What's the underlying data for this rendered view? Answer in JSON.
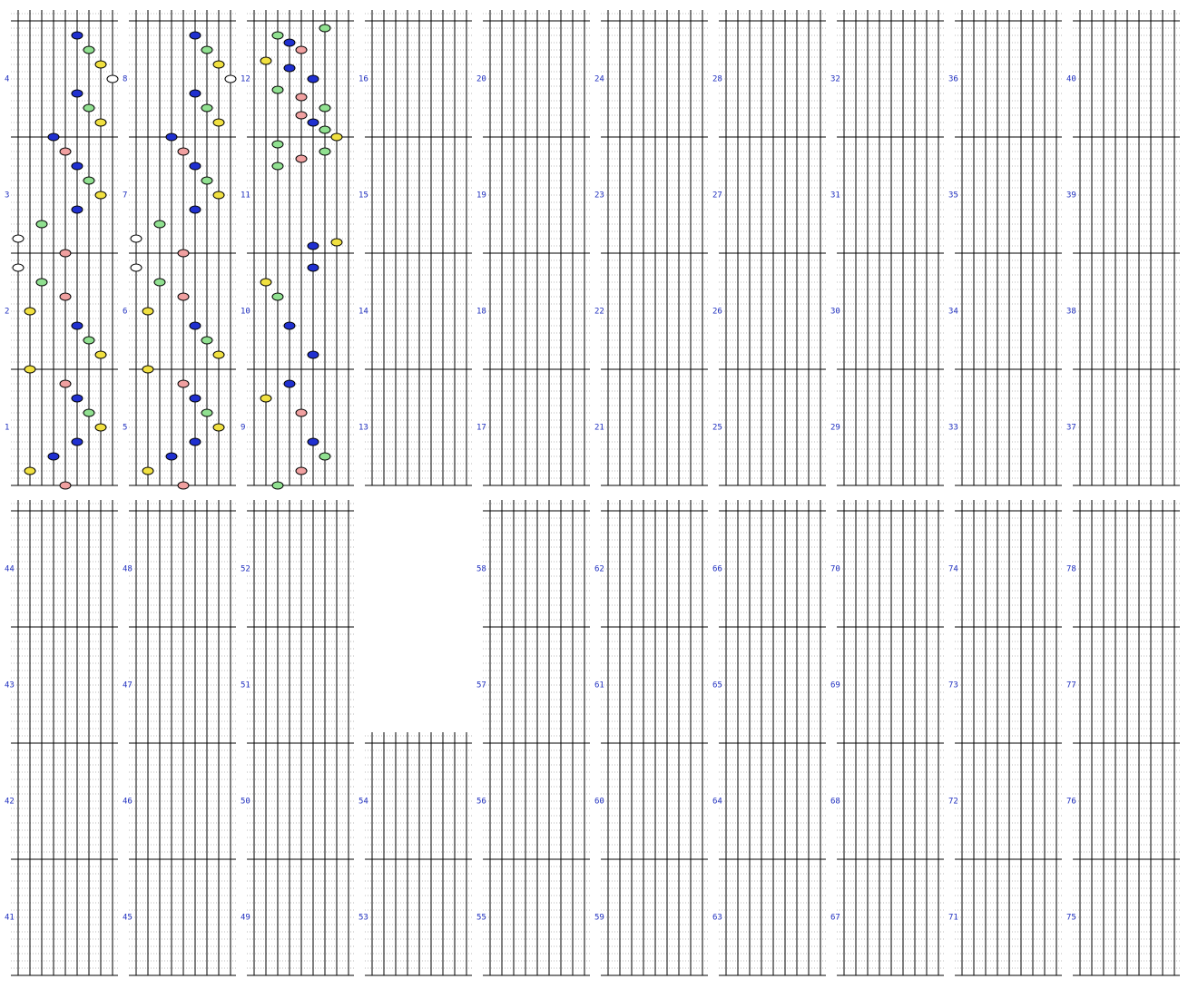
{
  "measures": [
    1,
    2,
    3,
    4,
    5,
    6,
    7,
    8,
    9,
    10,
    11,
    12,
    13,
    14,
    15,
    16,
    17,
    18,
    19,
    20,
    21,
    22,
    23,
    24,
    25,
    26,
    27,
    28,
    29,
    30,
    31,
    32,
    33,
    34,
    35,
    36,
    37,
    38,
    39,
    40,
    41,
    42,
    43,
    44,
    45,
    46,
    47,
    48,
    49,
    50,
    51,
    52,
    53,
    54,
    55,
    56,
    57,
    58,
    59,
    60,
    61,
    62,
    63,
    64,
    65,
    66,
    67,
    68,
    69,
    70,
    71,
    72,
    73,
    74,
    75,
    76,
    77,
    78
  ],
  "lane_colors": [
    "#ffffff",
    "#f0e040",
    "#90e090",
    "#2030d0",
    "#f0a0a0",
    "#2030d0",
    "#90e090",
    "#f0e040",
    "#ffffff"
  ],
  "notes": [
    [
      [
        5,
        62
      ],
      [
        6,
        60
      ],
      [
        7,
        58
      ],
      [
        8,
        56
      ],
      [
        5,
        54
      ],
      [
        6,
        52
      ],
      [
        7,
        50
      ],
      [
        3,
        48
      ],
      [
        4,
        46
      ],
      [
        5,
        44
      ],
      [
        6,
        42
      ],
      [
        7,
        40
      ],
      [
        5,
        38
      ],
      [
        2,
        36
      ],
      [
        0,
        34
      ],
      [
        4,
        32
      ],
      [
        0,
        30
      ],
      [
        2,
        28
      ],
      [
        4,
        26
      ],
      [
        1,
        24
      ],
      [
        5,
        22
      ],
      [
        6,
        20
      ],
      [
        7,
        18
      ],
      [
        1,
        16
      ],
      [
        4,
        14
      ],
      [
        5,
        12
      ],
      [
        6,
        10
      ],
      [
        7,
        8
      ],
      [
        5,
        6
      ],
      [
        3,
        4
      ],
      [
        1,
        2
      ],
      [
        4,
        0
      ]
    ],
    [
      [
        5,
        62
      ],
      [
        6,
        60
      ],
      [
        7,
        58
      ],
      [
        8,
        56
      ],
      [
        5,
        54
      ],
      [
        6,
        52
      ],
      [
        7,
        50
      ],
      [
        3,
        48
      ],
      [
        4,
        46
      ],
      [
        5,
        44
      ],
      [
        6,
        42
      ],
      [
        7,
        40
      ],
      [
        5,
        38
      ],
      [
        2,
        36
      ],
      [
        0,
        34
      ],
      [
        4,
        32
      ],
      [
        0,
        30
      ],
      [
        2,
        28
      ],
      [
        4,
        26
      ],
      [
        1,
        24
      ],
      [
        5,
        22
      ],
      [
        6,
        20
      ],
      [
        7,
        18
      ],
      [
        1,
        16
      ],
      [
        4,
        14
      ],
      [
        5,
        12
      ],
      [
        6,
        10
      ],
      [
        7,
        8
      ],
      [
        5,
        6
      ],
      [
        3,
        4
      ],
      [
        1,
        2
      ],
      [
        4,
        0
      ]
    ],
    [
      [
        2,
        62
      ],
      [
        3,
        61
      ],
      [
        4,
        60
      ],
      [
        6,
        63
      ],
      [
        1,
        58.5
      ],
      [
        3,
        57.5
      ],
      [
        5,
        56
      ],
      [
        2,
        54.5
      ],
      [
        4,
        53.5
      ],
      [
        6,
        52
      ],
      [
        4,
        51
      ],
      [
        5,
        50
      ],
      [
        6,
        49
      ],
      [
        7,
        48
      ],
      [
        2,
        47
      ],
      [
        6,
        46
      ],
      [
        4,
        45
      ],
      [
        2,
        44
      ],
      [
        7,
        33.5
      ],
      [
        5,
        33
      ],
      [
        5,
        30
      ],
      [
        1,
        28
      ],
      [
        2,
        26
      ],
      [
        3,
        22
      ],
      [
        5,
        18
      ],
      [
        3,
        14
      ],
      [
        1,
        12
      ],
      [
        4,
        10
      ],
      [
        5,
        6
      ],
      [
        6,
        4
      ],
      [
        4,
        2
      ],
      [
        2,
        0
      ]
    ],
    [],
    [],
    [],
    [],
    [],
    [],
    [],
    [],
    [],
    [],
    [],
    [],
    [],
    [],
    [],
    [],
    []
  ]
}
